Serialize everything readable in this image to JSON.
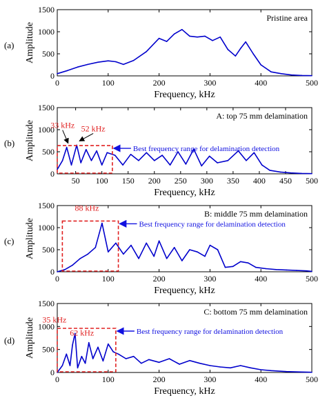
{
  "chart_data": [
    {
      "type": "line",
      "panel_label": "(a)",
      "title": "Pristine area",
      "xlabel": "Frequency, kHz",
      "ylabel": "Amplitude",
      "xlim": [
        0,
        500
      ],
      "ylim": [
        0,
        1500
      ],
      "xticks": [
        0,
        100,
        200,
        300,
        400,
        500
      ],
      "yticks": [
        0,
        500,
        1000,
        1500
      ],
      "color": "#0000cc",
      "x": [
        0,
        20,
        40,
        60,
        80,
        100,
        115,
        130,
        150,
        175,
        200,
        215,
        230,
        245,
        260,
        275,
        290,
        305,
        320,
        335,
        350,
        360,
        370,
        385,
        400,
        420,
        440,
        460,
        480,
        500
      ],
      "y": [
        50,
        120,
        200,
        260,
        310,
        340,
        320,
        260,
        350,
        550,
        850,
        780,
        950,
        1050,
        900,
        880,
        900,
        800,
        880,
        600,
        450,
        620,
        770,
        500,
        250,
        90,
        50,
        20,
        10,
        5
      ],
      "annotations": [],
      "box": null
    },
    {
      "type": "line",
      "panel_label": "(b)",
      "title": "A: top 75 mm delamination",
      "xlabel": "Frequency, kHz",
      "ylabel": "Amplitude",
      "xlim": [
        15,
        500
      ],
      "ylim": [
        0,
        1500
      ],
      "xticks": [
        50,
        100,
        150,
        200,
        250,
        300,
        350,
        400,
        450,
        500
      ],
      "yticks": [
        0,
        500,
        1000,
        1500
      ],
      "color": "#0000cc",
      "x": [
        15,
        25,
        33,
        42,
        52,
        60,
        70,
        80,
        90,
        100,
        110,
        125,
        140,
        155,
        170,
        185,
        200,
        215,
        230,
        245,
        260,
        275,
        290,
        305,
        320,
        340,
        360,
        375,
        390,
        405,
        420,
        440,
        460,
        480,
        500
      ],
      "y": [
        100,
        300,
        600,
        200,
        650,
        250,
        550,
        300,
        520,
        200,
        480,
        420,
        200,
        440,
        300,
        480,
        300,
        420,
        200,
        500,
        220,
        560,
        180,
        400,
        250,
        300,
        520,
        300,
        480,
        200,
        80,
        40,
        20,
        10,
        5
      ],
      "annotations": [
        {
          "text": "33 kHz",
          "x": 33,
          "y": 600
        },
        {
          "text": "52 kHz",
          "x": 52,
          "y": 650
        }
      ],
      "box": {
        "x": [
          15,
          120
        ],
        "y": [
          0,
          640
        ],
        "label": "Best frequency range for delamination detection"
      }
    },
    {
      "type": "line",
      "panel_label": "(c)",
      "title": "B: middle 75 mm delamination",
      "xlabel": "Frequency, kHz",
      "ylabel": "Amplitude",
      "xlim": [
        0,
        500
      ],
      "ylim": [
        0,
        1500
      ],
      "xticks": [
        0,
        100,
        200,
        300,
        400,
        500
      ],
      "yticks": [
        0,
        500,
        1000,
        1500
      ],
      "color": "#0000cc",
      "x": [
        0,
        15,
        30,
        45,
        60,
        75,
        88,
        100,
        115,
        130,
        145,
        160,
        175,
        190,
        200,
        215,
        230,
        245,
        260,
        275,
        290,
        300,
        315,
        330,
        345,
        360,
        375,
        390,
        410,
        430,
        450,
        470,
        490,
        500
      ],
      "y": [
        0,
        50,
        150,
        300,
        400,
        550,
        1100,
        450,
        650,
        400,
        600,
        300,
        650,
        350,
        700,
        300,
        550,
        250,
        500,
        450,
        350,
        600,
        500,
        100,
        120,
        230,
        200,
        100,
        70,
        50,
        40,
        30,
        20,
        10
      ],
      "annotations": [
        {
          "text": "88 kHz",
          "x": 88,
          "y": 1100
        }
      ],
      "box": {
        "x": [
          10,
          120
        ],
        "y": [
          0,
          1150
        ],
        "label": "Best frequency range for delamination detection"
      }
    },
    {
      "type": "line",
      "panel_label": "(d)",
      "title": "C: bottom 75 mm delamination",
      "xlabel": "Frequency, kHz",
      "ylabel": "Amplitude",
      "xlim": [
        0,
        500
      ],
      "ylim": [
        0,
        1500
      ],
      "xticks": [
        0,
        100,
        200,
        300,
        400,
        500
      ],
      "yticks": [
        0,
        500,
        1000,
        1500
      ],
      "color": "#0000cc",
      "x": [
        0,
        10,
        18,
        25,
        30,
        35,
        40,
        48,
        55,
        62,
        70,
        80,
        90,
        100,
        110,
        120,
        135,
        150,
        165,
        180,
        200,
        220,
        240,
        260,
        280,
        300,
        320,
        340,
        360,
        380,
        400,
        420,
        450,
        480,
        500
      ],
      "y": [
        0,
        150,
        400,
        150,
        600,
        850,
        100,
        350,
        200,
        650,
        300,
        550,
        250,
        620,
        450,
        400,
        300,
        350,
        200,
        280,
        220,
        300,
        180,
        260,
        200,
        150,
        120,
        100,
        150,
        100,
        60,
        40,
        20,
        10,
        5
      ],
      "annotations": [
        {
          "text": "35 kHz",
          "x": 35,
          "y": 850
        },
        {
          "text": "62 kHz",
          "x": 62,
          "y": 650
        }
      ],
      "box": {
        "x": [
          0,
          115
        ],
        "y": [
          0,
          960
        ],
        "label": "Best frequency range for delamination detection"
      }
    }
  ]
}
